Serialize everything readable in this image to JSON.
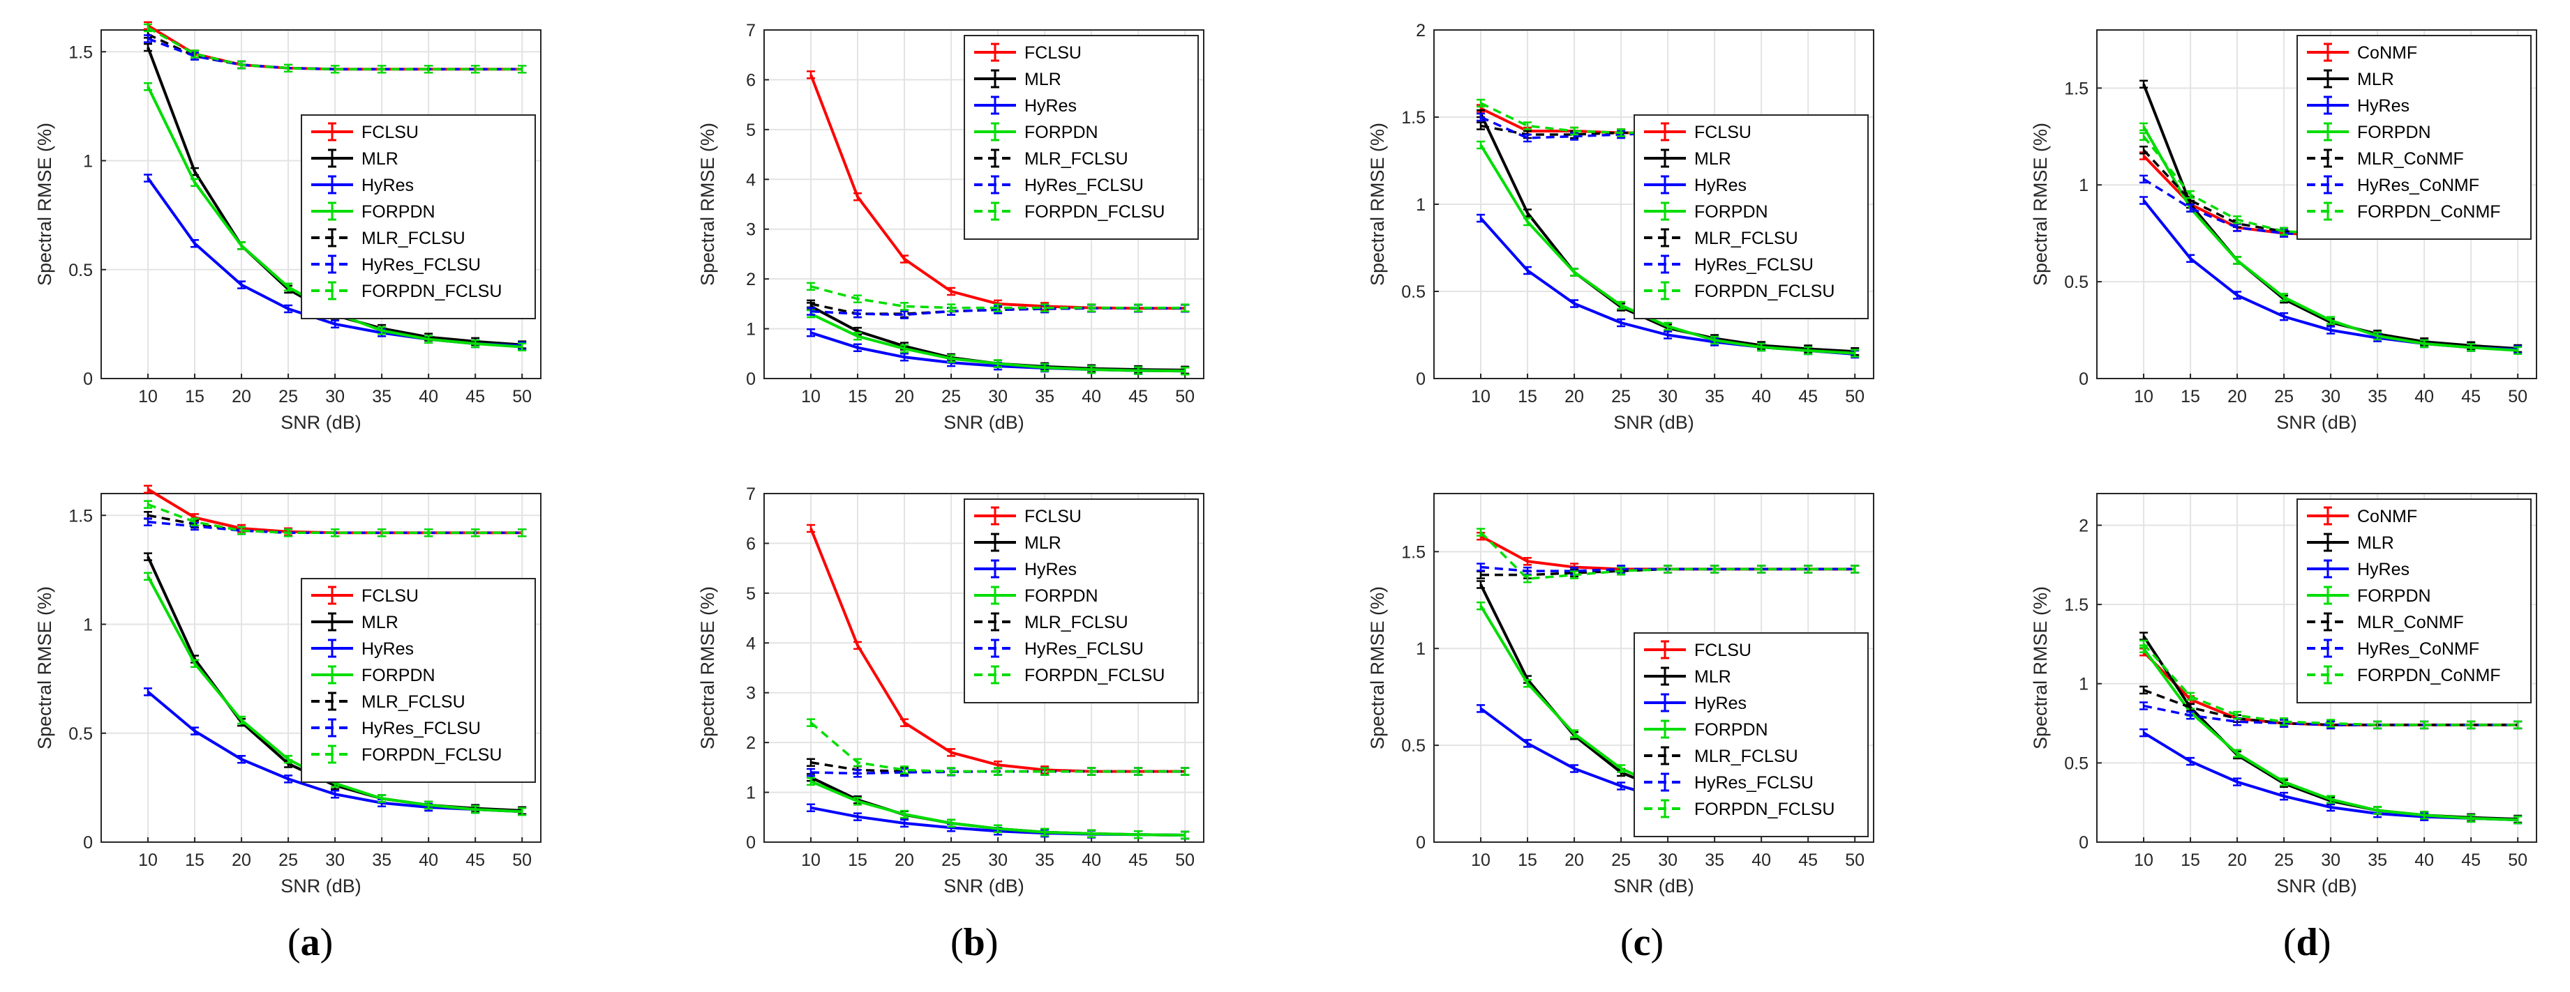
{
  "colors": {
    "FCLSU": "#ff0000",
    "CoNMF": "#ff0000",
    "MLR": "#000000",
    "HyRes": "#0000ff",
    "FORPDN": "#00dd00",
    "MLR_FCLSU": "#000000",
    "HyRes_FCLSU": "#0000ff",
    "FORPDN_FCLSU": "#00dd00",
    "MLR_CoNMF": "#000000",
    "HyRes_CoNMF": "#0000ff",
    "FORPDN_CoNMF": "#00dd00"
  },
  "captions": [
    {
      "open": "(",
      "letter": "a",
      "close": ")"
    },
    {
      "open": "(",
      "letter": "b",
      "close": ")"
    },
    {
      "open": "(",
      "letter": "c",
      "close": ")"
    },
    {
      "open": "(",
      "letter": "d",
      "close": ")"
    }
  ],
  "chart_data": [
    {
      "id": "a1",
      "type": "line",
      "xlabel": "SNR (dB)",
      "ylabel": "Spectral RMSE (%)",
      "x": [
        10,
        15,
        20,
        25,
        30,
        35,
        40,
        45,
        50
      ],
      "xlim": [
        5,
        52
      ],
      "ylim": [
        0,
        1.6
      ],
      "yticks": [
        0,
        0.5,
        1,
        1.5
      ],
      "legend_position": "right-middle",
      "series": [
        {
          "name": "FCLSU",
          "dash": false,
          "values": [
            1.62,
            1.49,
            1.44,
            1.425,
            1.42,
            1.42,
            1.42,
            1.42,
            1.42
          ]
        },
        {
          "name": "MLR",
          "dash": false,
          "values": [
            1.52,
            0.95,
            0.61,
            0.41,
            0.29,
            0.23,
            0.19,
            0.17,
            0.155
          ]
        },
        {
          "name": "HyRes",
          "dash": false,
          "values": [
            0.92,
            0.62,
            0.43,
            0.32,
            0.25,
            0.21,
            0.18,
            0.16,
            0.15
          ]
        },
        {
          "name": "FORPDN",
          "dash": false,
          "values": [
            1.34,
            0.9,
            0.61,
            0.42,
            0.3,
            0.22,
            0.18,
            0.16,
            0.145
          ]
        },
        {
          "name": "MLR_FCLSU",
          "dash": true,
          "values": [
            1.58,
            1.48,
            1.44,
            1.425,
            1.42,
            1.42,
            1.42,
            1.42,
            1.42
          ]
        },
        {
          "name": "HyRes_FCLSU",
          "dash": true,
          "values": [
            1.56,
            1.48,
            1.44,
            1.425,
            1.42,
            1.42,
            1.42,
            1.42,
            1.42
          ]
        },
        {
          "name": "FORPDN_FCLSU",
          "dash": true,
          "values": [
            1.61,
            1.49,
            1.44,
            1.425,
            1.42,
            1.42,
            1.42,
            1.42,
            1.42
          ]
        }
      ]
    },
    {
      "id": "b1",
      "type": "line",
      "xlabel": "SNR (dB)",
      "ylabel": "Spectral RMSE (%)",
      "x": [
        10,
        15,
        20,
        25,
        30,
        35,
        40,
        45,
        50
      ],
      "xlim": [
        5,
        52
      ],
      "ylim": [
        0,
        7
      ],
      "yticks": [
        0,
        1,
        2,
        3,
        4,
        5,
        6,
        7
      ],
      "legend_position": "top-right",
      "series": [
        {
          "name": "FCLSU",
          "dash": false,
          "values": [
            6.1,
            3.65,
            2.4,
            1.75,
            1.5,
            1.45,
            1.42,
            1.41,
            1.41
          ]
        },
        {
          "name": "MLR",
          "dash": false,
          "values": [
            1.45,
            0.95,
            0.65,
            0.42,
            0.3,
            0.24,
            0.2,
            0.18,
            0.17
          ]
        },
        {
          "name": "HyRes",
          "dash": false,
          "values": [
            0.92,
            0.62,
            0.43,
            0.32,
            0.25,
            0.21,
            0.18,
            0.16,
            0.15
          ]
        },
        {
          "name": "FORPDN",
          "dash": false,
          "values": [
            1.3,
            0.85,
            0.6,
            0.4,
            0.3,
            0.22,
            0.18,
            0.16,
            0.15
          ]
        },
        {
          "name": "MLR_FCLSU",
          "dash": true,
          "values": [
            1.5,
            1.3,
            1.3,
            1.35,
            1.38,
            1.4,
            1.41,
            1.41,
            1.41
          ]
        },
        {
          "name": "HyRes_FCLSU",
          "dash": true,
          "values": [
            1.35,
            1.3,
            1.28,
            1.35,
            1.38,
            1.4,
            1.41,
            1.41,
            1.41
          ]
        },
        {
          "name": "FORPDN_FCLSU",
          "dash": true,
          "values": [
            1.85,
            1.6,
            1.45,
            1.42,
            1.42,
            1.42,
            1.42,
            1.42,
            1.42
          ]
        }
      ]
    },
    {
      "id": "c1",
      "type": "line",
      "xlabel": "SNR (dB)",
      "ylabel": "Spectral RMSE (%)",
      "x": [
        10,
        15,
        20,
        25,
        30,
        35,
        40,
        45,
        50
      ],
      "xlim": [
        5,
        52
      ],
      "ylim": [
        0,
        2
      ],
      "yticks": [
        0,
        0.5,
        1,
        1.5,
        2
      ],
      "legend_position": "right-middle",
      "series": [
        {
          "name": "FCLSU",
          "dash": false,
          "values": [
            1.55,
            1.42,
            1.42,
            1.41,
            1.41,
            1.41,
            1.41,
            1.41,
            1.41
          ]
        },
        {
          "name": "MLR",
          "dash": false,
          "values": [
            1.52,
            0.95,
            0.61,
            0.41,
            0.29,
            0.23,
            0.19,
            0.17,
            0.155
          ]
        },
        {
          "name": "HyRes",
          "dash": false,
          "values": [
            0.92,
            0.62,
            0.43,
            0.32,
            0.25,
            0.21,
            0.18,
            0.16,
            0.14
          ]
        },
        {
          "name": "FORPDN",
          "dash": false,
          "values": [
            1.34,
            0.9,
            0.61,
            0.42,
            0.3,
            0.22,
            0.18,
            0.16,
            0.145
          ]
        },
        {
          "name": "MLR_FCLSU",
          "dash": true,
          "values": [
            1.45,
            1.4,
            1.4,
            1.41,
            1.41,
            1.41,
            1.41,
            1.41,
            1.41
          ]
        },
        {
          "name": "HyRes_FCLSU",
          "dash": true,
          "values": [
            1.5,
            1.38,
            1.39,
            1.4,
            1.41,
            1.41,
            1.41,
            1.41,
            1.41
          ]
        },
        {
          "name": "FORPDN_FCLSU",
          "dash": true,
          "values": [
            1.58,
            1.45,
            1.42,
            1.41,
            1.41,
            1.41,
            1.41,
            1.41,
            1.41
          ]
        }
      ]
    },
    {
      "id": "d1",
      "type": "line",
      "xlabel": "SNR (dB)",
      "ylabel": "Spectral RMSE (%)",
      "x": [
        10,
        15,
        20,
        25,
        30,
        35,
        40,
        45,
        50
      ],
      "xlim": [
        5,
        52
      ],
      "ylim": [
        0,
        1.8
      ],
      "yticks": [
        0,
        0.5,
        1,
        1.5
      ],
      "legend_position": "top-right",
      "series": [
        {
          "name": "CoNMF",
          "dash": false,
          "values": [
            1.15,
            0.9,
            0.78,
            0.75,
            0.74,
            0.74,
            0.74,
            0.74,
            0.74
          ]
        },
        {
          "name": "MLR",
          "dash": false,
          "values": [
            1.52,
            0.9,
            0.61,
            0.41,
            0.29,
            0.23,
            0.19,
            0.17,
            0.155
          ]
        },
        {
          "name": "HyRes",
          "dash": false,
          "values": [
            0.92,
            0.62,
            0.43,
            0.32,
            0.25,
            0.21,
            0.18,
            0.16,
            0.15
          ]
        },
        {
          "name": "FORPDN",
          "dash": false,
          "values": [
            1.3,
            0.88,
            0.61,
            0.42,
            0.3,
            0.22,
            0.18,
            0.16,
            0.145
          ]
        },
        {
          "name": "MLR_CoNMF",
          "dash": true,
          "values": [
            1.18,
            0.92,
            0.8,
            0.76,
            0.75,
            0.74,
            0.74,
            0.74,
            0.74
          ]
        },
        {
          "name": "HyRes_CoNMF",
          "dash": true,
          "values": [
            1.03,
            0.88,
            0.78,
            0.75,
            0.74,
            0.74,
            0.74,
            0.74,
            0.74
          ]
        },
        {
          "name": "FORPDN_CoNMF",
          "dash": true,
          "values": [
            1.25,
            0.95,
            0.82,
            0.76,
            0.75,
            0.74,
            0.74,
            0.74,
            0.74
          ]
        }
      ]
    },
    {
      "id": "a2",
      "type": "line",
      "xlabel": "SNR (dB)",
      "ylabel": "Spectral RMSE (%)",
      "x": [
        10,
        15,
        20,
        25,
        30,
        35,
        40,
        45,
        50
      ],
      "xlim": [
        5,
        52
      ],
      "ylim": [
        0,
        1.6
      ],
      "yticks": [
        0,
        0.5,
        1,
        1.5
      ],
      "legend_position": "right-middle",
      "series": [
        {
          "name": "FCLSU",
          "dash": false,
          "values": [
            1.62,
            1.49,
            1.44,
            1.425,
            1.42,
            1.42,
            1.42,
            1.42,
            1.42
          ]
        },
        {
          "name": "MLR",
          "dash": false,
          "values": [
            1.31,
            0.84,
            0.55,
            0.36,
            0.26,
            0.2,
            0.17,
            0.155,
            0.145
          ]
        },
        {
          "name": "HyRes",
          "dash": false,
          "values": [
            0.69,
            0.51,
            0.38,
            0.29,
            0.22,
            0.18,
            0.16,
            0.15,
            0.14
          ]
        },
        {
          "name": "FORPDN",
          "dash": false,
          "values": [
            1.22,
            0.82,
            0.56,
            0.38,
            0.27,
            0.2,
            0.17,
            0.15,
            0.14
          ]
        },
        {
          "name": "MLR_FCLSU",
          "dash": true,
          "values": [
            1.5,
            1.46,
            1.43,
            1.42,
            1.42,
            1.42,
            1.42,
            1.42,
            1.42
          ]
        },
        {
          "name": "HyRes_FCLSU",
          "dash": true,
          "values": [
            1.47,
            1.45,
            1.43,
            1.42,
            1.42,
            1.42,
            1.42,
            1.42,
            1.42
          ]
        },
        {
          "name": "FORPDN_FCLSU",
          "dash": true,
          "values": [
            1.55,
            1.47,
            1.43,
            1.42,
            1.42,
            1.42,
            1.42,
            1.42,
            1.42
          ]
        }
      ]
    },
    {
      "id": "b2",
      "type": "line",
      "xlabel": "SNR (dB)",
      "ylabel": "Spectral RMSE (%)",
      "x": [
        10,
        15,
        20,
        25,
        30,
        35,
        40,
        45,
        50
      ],
      "xlim": [
        5,
        52
      ],
      "ylim": [
        0,
        7
      ],
      "yticks": [
        0,
        1,
        2,
        3,
        4,
        5,
        6,
        7
      ],
      "legend_position": "top-right",
      "series": [
        {
          "name": "FCLSU",
          "dash": false,
          "values": [
            6.3,
            3.95,
            2.4,
            1.8,
            1.55,
            1.45,
            1.42,
            1.42,
            1.42
          ]
        },
        {
          "name": "MLR",
          "dash": false,
          "values": [
            1.3,
            0.85,
            0.55,
            0.38,
            0.27,
            0.2,
            0.17,
            0.15,
            0.14
          ]
        },
        {
          "name": "HyRes",
          "dash": false,
          "values": [
            0.69,
            0.51,
            0.38,
            0.29,
            0.22,
            0.18,
            0.16,
            0.15,
            0.14
          ]
        },
        {
          "name": "FORPDN",
          "dash": false,
          "values": [
            1.22,
            0.82,
            0.56,
            0.38,
            0.27,
            0.2,
            0.17,
            0.15,
            0.14
          ]
        },
        {
          "name": "MLR_FCLSU",
          "dash": true,
          "values": [
            1.6,
            1.45,
            1.42,
            1.42,
            1.42,
            1.42,
            1.42,
            1.42,
            1.42
          ]
        },
        {
          "name": "HyRes_FCLSU",
          "dash": true,
          "values": [
            1.4,
            1.38,
            1.4,
            1.41,
            1.42,
            1.42,
            1.42,
            1.42,
            1.42
          ]
        },
        {
          "name": "FORPDN_FCLSU",
          "dash": true,
          "values": [
            2.4,
            1.6,
            1.45,
            1.42,
            1.42,
            1.42,
            1.42,
            1.42,
            1.42
          ]
        }
      ]
    },
    {
      "id": "c2",
      "type": "line",
      "xlabel": "SNR (dB)",
      "ylabel": "Spectral RMSE (%)",
      "x": [
        10,
        15,
        20,
        25,
        30,
        35,
        40,
        45,
        50
      ],
      "xlim": [
        5,
        52
      ],
      "ylim": [
        0,
        1.8
      ],
      "yticks": [
        0,
        0.5,
        1,
        1.5
      ],
      "legend_position": "bottom-right",
      "series": [
        {
          "name": "FCLSU",
          "dash": false,
          "values": [
            1.58,
            1.45,
            1.42,
            1.41,
            1.41,
            1.41,
            1.41,
            1.41,
            1.41
          ]
        },
        {
          "name": "MLR",
          "dash": false,
          "values": [
            1.33,
            0.84,
            0.55,
            0.36,
            0.26,
            0.2,
            0.17,
            0.155,
            0.145
          ]
        },
        {
          "name": "HyRes",
          "dash": false,
          "values": [
            0.69,
            0.51,
            0.38,
            0.29,
            0.22,
            0.18,
            0.16,
            0.15,
            0.14
          ]
        },
        {
          "name": "FORPDN",
          "dash": false,
          "values": [
            1.22,
            0.82,
            0.56,
            0.38,
            0.27,
            0.2,
            0.17,
            0.15,
            0.14
          ]
        },
        {
          "name": "MLR_FCLSU",
          "dash": true,
          "values": [
            1.38,
            1.38,
            1.39,
            1.4,
            1.41,
            1.41,
            1.41,
            1.41,
            1.41
          ]
        },
        {
          "name": "HyRes_FCLSU",
          "dash": true,
          "values": [
            1.42,
            1.4,
            1.4,
            1.41,
            1.41,
            1.41,
            1.41,
            1.41,
            1.41
          ]
        },
        {
          "name": "FORPDN_FCLSU",
          "dash": true,
          "values": [
            1.6,
            1.36,
            1.38,
            1.4,
            1.41,
            1.41,
            1.41,
            1.41,
            1.41
          ]
        }
      ]
    },
    {
      "id": "d2",
      "type": "line",
      "xlabel": "SNR (dB)",
      "ylabel": "Spectral RMSE (%)",
      "x": [
        10,
        15,
        20,
        25,
        30,
        35,
        40,
        45,
        50
      ],
      "xlim": [
        5,
        52
      ],
      "ylim": [
        0,
        2.2
      ],
      "yticks": [
        0,
        0.5,
        1,
        1.5,
        2
      ],
      "legend_position": "top-right",
      "series": [
        {
          "name": "CoNMF",
          "dash": false,
          "values": [
            1.2,
            0.9,
            0.78,
            0.75,
            0.74,
            0.74,
            0.74,
            0.74,
            0.74
          ]
        },
        {
          "name": "MLR",
          "dash": false,
          "values": [
            1.3,
            0.85,
            0.55,
            0.37,
            0.26,
            0.2,
            0.17,
            0.155,
            0.145
          ]
        },
        {
          "name": "HyRes",
          "dash": false,
          "values": [
            0.69,
            0.51,
            0.38,
            0.29,
            0.22,
            0.18,
            0.16,
            0.15,
            0.14
          ]
        },
        {
          "name": "FORPDN",
          "dash": false,
          "values": [
            1.22,
            0.82,
            0.56,
            0.38,
            0.27,
            0.2,
            0.17,
            0.15,
            0.14
          ]
        },
        {
          "name": "MLR_CoNMF",
          "dash": true,
          "values": [
            0.96,
            0.85,
            0.78,
            0.75,
            0.74,
            0.74,
            0.74,
            0.74,
            0.74
          ]
        },
        {
          "name": "HyRes_CoNMF",
          "dash": true,
          "values": [
            0.86,
            0.8,
            0.76,
            0.75,
            0.74,
            0.74,
            0.74,
            0.74,
            0.74
          ]
        },
        {
          "name": "FORPDN_CoNMF",
          "dash": true,
          "values": [
            1.25,
            0.92,
            0.8,
            0.76,
            0.75,
            0.74,
            0.74,
            0.74,
            0.74
          ]
        }
      ]
    }
  ]
}
